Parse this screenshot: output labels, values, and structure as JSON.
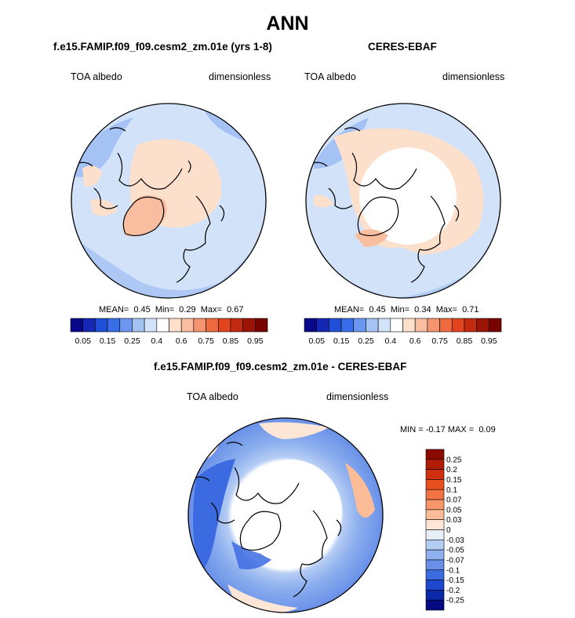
{
  "figure": {
    "title": "ANN"
  },
  "panels": [
    {
      "title": "f.e15.FAMIP.f09_f09.cesm2_zm.01e (yrs 1-8)",
      "left_label": "TOA albedo",
      "right_label": "dimensionless",
      "stats": {
        "mean_label": "MEAN=",
        "mean": "0.45",
        "min_label": "Min=",
        "min": "0.29",
        "max_label": "Max=",
        "max": "0.67"
      }
    },
    {
      "title": "CERES-EBAF",
      "left_label": "TOA albedo",
      "right_label": "dimensionless",
      "stats": {
        "mean_label": "MEAN=",
        "mean": "0.45",
        "min_label": "Min=",
        "min": "0.34",
        "max_label": "Max=",
        "max": "0.71"
      }
    },
    {
      "title": "f.e15.FAMIP.f09_f09.cesm2_zm.01e - CERES-EBAF",
      "left_label": "TOA albedo",
      "right_label": "dimensionless",
      "stats": {
        "min_label": "MIN =",
        "min": "-0.17",
        "max_label": "MAX =",
        "max": "0.09"
      }
    }
  ],
  "colorbar_abs": {
    "tick_labels": [
      "0.05",
      "0.15",
      "0.25",
      "0.4",
      "0.6",
      "0.75",
      "0.85",
      "0.95"
    ],
    "colors": [
      "#08088a",
      "#1428b4",
      "#2050d8",
      "#3a6ee8",
      "#6c96f0",
      "#a4c2f4",
      "#d2e2f8",
      "#ffffff",
      "#fde0cc",
      "#f9bea0",
      "#f59470",
      "#f06a40",
      "#e2441e",
      "#c42a10",
      "#9c1406",
      "#780400"
    ]
  },
  "colorbar_diff": {
    "tick_labels": [
      "0.25",
      "0.2",
      "0.15",
      "0.1",
      "0.07",
      "0.05",
      "0.03",
      "0",
      "-0.03",
      "-0.05",
      "-0.07",
      "-0.1",
      "-0.15",
      "-0.2",
      "-0.25"
    ],
    "colors": [
      "#8c0a00",
      "#b01c08",
      "#d03010",
      "#e8501e",
      "#f27444",
      "#f8966a",
      "#fcbc98",
      "#fde6d6",
      "#e8eef8",
      "#b6cdf4",
      "#8eb0ee",
      "#6890e8",
      "#3c6ae0",
      "#1e48d0",
      "#0a28a8",
      "#060a80"
    ]
  },
  "chart_data": [
    {
      "type": "heatmap",
      "title": "f.e15.FAMIP.f09_f09.cesm2_zm.01e (yrs 1-8)",
      "projection": "north polar stereographic",
      "variable": "TOA albedo",
      "units": "dimensionless",
      "levels": [
        0.05,
        0.1,
        0.15,
        0.2,
        0.25,
        0.3,
        0.4,
        0.5,
        0.6,
        0.7,
        0.75,
        0.8,
        0.85,
        0.9,
        0.95
      ],
      "mean": 0.45,
      "min": 0.29,
      "max": 0.67
    },
    {
      "type": "heatmap",
      "title": "CERES-EBAF",
      "projection": "north polar stereographic",
      "variable": "TOA albedo",
      "units": "dimensionless",
      "levels": [
        0.05,
        0.1,
        0.15,
        0.2,
        0.25,
        0.3,
        0.4,
        0.5,
        0.6,
        0.7,
        0.75,
        0.8,
        0.85,
        0.9,
        0.95
      ],
      "mean": 0.45,
      "min": 0.34,
      "max": 0.71
    },
    {
      "type": "heatmap",
      "title": "f.e15.FAMIP.f09_f09.cesm2_zm.01e - CERES-EBAF",
      "projection": "north polar stereographic",
      "variable": "TOA albedo",
      "units": "dimensionless",
      "levels": [
        -0.25,
        -0.2,
        -0.15,
        -0.1,
        -0.07,
        -0.05,
        -0.03,
        0,
        0.03,
        0.05,
        0.07,
        0.1,
        0.15,
        0.2,
        0.25
      ],
      "min": -0.17,
      "max": 0.09
    }
  ]
}
